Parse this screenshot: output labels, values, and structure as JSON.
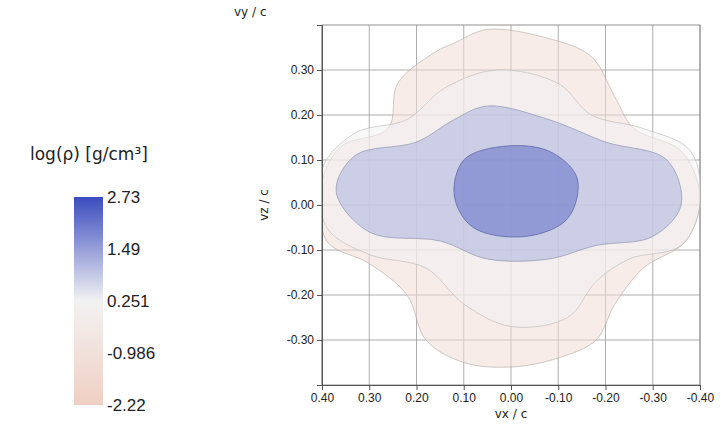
{
  "chart_data": {
    "type": "isosurface",
    "x_label": "vx / c",
    "y_label": "vz / c",
    "z_label": "vy / c",
    "xlim": [
      0.4,
      -0.4
    ],
    "xticks": [
      {
        "value": 0.4,
        "label": "0.40"
      },
      {
        "value": 0.3,
        "label": "0.30"
      },
      {
        "value": 0.2,
        "label": "0.20"
      },
      {
        "value": 0.1,
        "label": "0.10"
      },
      {
        "value": 0.0,
        "label": "0.00"
      },
      {
        "value": -0.1,
        "label": "-0.10"
      },
      {
        "value": -0.2,
        "label": "-0.20"
      },
      {
        "value": -0.3,
        "label": "-0.30"
      },
      {
        "value": -0.4,
        "label": "-0.40"
      }
    ],
    "ylim": [
      -0.4,
      0.4
    ],
    "yticks": [
      {
        "value": 0.3,
        "label": "0.30"
      },
      {
        "value": 0.2,
        "label": "0.20"
      },
      {
        "value": 0.1,
        "label": "0.10"
      },
      {
        "value": 0.0,
        "label": "0.00"
      },
      {
        "value": -0.1,
        "label": "-0.10"
      },
      {
        "value": -0.2,
        "label": "-0.20"
      },
      {
        "value": -0.3,
        "label": "-0.30"
      }
    ],
    "grid": true,
    "colorbar": {
      "title": "log(ρ) [g/cm³]",
      "range": [
        -2.22,
        2.73
      ],
      "ticks": [
        2.73,
        1.49,
        0.251,
        -0.986,
        -2.22
      ]
    },
    "isosurfaces": [
      {
        "level": -1.2,
        "vx": [
          0.05,
          -0.08,
          -0.17,
          -0.22,
          -0.26,
          -0.36,
          -0.4,
          -0.37,
          -0.28,
          -0.22,
          -0.18,
          -0.1,
          0.0,
          0.1,
          0.18,
          0.22,
          0.3,
          0.39,
          0.4,
          0.36,
          0.26,
          0.24,
          0.16,
          0.12
        ],
        "vz": [
          0.39,
          0.37,
          0.33,
          0.24,
          0.17,
          0.12,
          0.02,
          -0.08,
          -0.14,
          -0.22,
          -0.3,
          -0.34,
          -0.36,
          -0.35,
          -0.3,
          -0.2,
          -0.13,
          -0.08,
          0.05,
          0.13,
          0.17,
          0.27,
          0.34,
          0.36
        ]
      },
      {
        "level": 0.25,
        "vx": [
          0.03,
          -0.1,
          -0.17,
          -0.28,
          -0.38,
          -0.4,
          -0.36,
          -0.25,
          -0.18,
          -0.12,
          0.0,
          0.1,
          0.18,
          0.3,
          0.39,
          0.4,
          0.33,
          0.22,
          0.14
        ],
        "vz": [
          0.3,
          0.27,
          0.2,
          0.17,
          0.12,
          0.0,
          -0.09,
          -0.12,
          -0.17,
          -0.25,
          -0.27,
          -0.22,
          -0.14,
          -0.11,
          -0.05,
          0.08,
          0.16,
          0.19,
          0.26
        ]
      },
      {
        "level": 1.2,
        "vx": [
          0.05,
          -0.08,
          -0.2,
          -0.33,
          -0.36,
          -0.3,
          -0.18,
          -0.08,
          0.05,
          0.15,
          0.3,
          0.37,
          0.33,
          0.2,
          0.12
        ],
        "vz": [
          0.22,
          0.19,
          0.14,
          0.1,
          0.0,
          -0.07,
          -0.09,
          -0.12,
          -0.12,
          -0.08,
          -0.06,
          0.03,
          0.11,
          0.14,
          0.19
        ]
      },
      {
        "level": 2.2,
        "vx": [
          0.02,
          -0.08,
          -0.14,
          -0.12,
          -0.03,
          0.08,
          0.12,
          0.1
        ],
        "vz": [
          0.13,
          0.12,
          0.06,
          -0.03,
          -0.07,
          -0.05,
          0.02,
          0.1
        ]
      }
    ]
  }
}
